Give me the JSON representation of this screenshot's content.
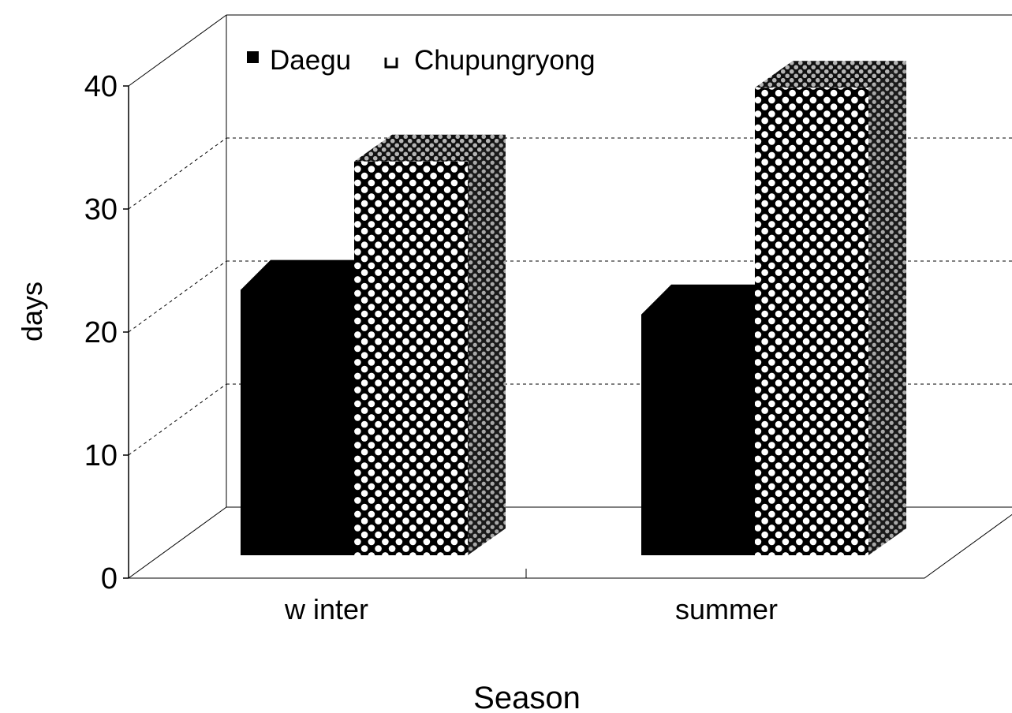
{
  "chart_data": {
    "type": "bar",
    "categories": [
      "w inter",
      "summer"
    ],
    "series": [
      {
        "name": "Daegu",
        "values": [
          24,
          22
        ]
      },
      {
        "name": "Chupungryong",
        "values": [
          32,
          38
        ]
      }
    ],
    "xlabel": "Season",
    "ylabel": "days",
    "ylim": [
      0,
      40
    ],
    "yticks": [
      "0",
      "10",
      "20",
      "30",
      "40"
    ],
    "grid": "y dashed",
    "legend_position": "top-left",
    "three_d": true,
    "colors": {
      "Daegu": "#000000",
      "Chupungryong_pattern_dark": "#000000",
      "Chupungryong_pattern_light": "#ffffff",
      "side_shade": "#9a9a9a"
    }
  }
}
